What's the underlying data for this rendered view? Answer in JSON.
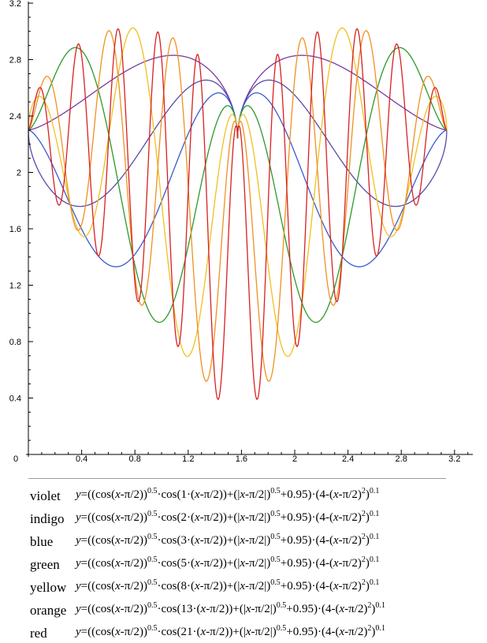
{
  "chart_data": {
    "type": "line",
    "title": "",
    "xlabel": "",
    "ylabel": "",
    "xlim": [
      0,
      3.3
    ],
    "ylim": [
      0,
      3.2
    ],
    "x_ticks": [
      "0",
      "0.4",
      "0.8",
      "1.2",
      "1.6",
      "2",
      "2.4",
      "2.8",
      "3.2"
    ],
    "y_ticks": [
      "0.4",
      "0.8",
      "1.2",
      "1.6",
      "2",
      "2.4",
      "2.8",
      "3.2"
    ],
    "grid": false,
    "legend_position": "bottom",
    "x_domain": [
      0,
      3.14159
    ],
    "series": [
      {
        "name": "violet",
        "k": 1,
        "color": "#7a3aa0",
        "equation": "y=((cos(x-π/2))^0.5·cos(1·(x-π/2))+(|x-π/2|)^0.5+0.95)·(4-(x-π/2)^2)^0.1"
      },
      {
        "name": "indigo",
        "k": 2,
        "color": "#5a4aa8",
        "equation": "y=((cos(x-π/2))^0.5·cos(2·(x-π/2))+(|x-π/2|)^0.5+0.95)·(4-(x-π/2)^2)^0.1"
      },
      {
        "name": "blue",
        "k": 3,
        "color": "#3a5ad0",
        "equation": "y=((cos(x-π/2))^0.5·cos(3·(x-π/2))+(|x-π/2|)^0.5+0.95)·(4-(x-π/2)^2)^0.1"
      },
      {
        "name": "green",
        "k": 5,
        "color": "#2a9a2a",
        "equation": "y=((cos(x-π/2))^0.5·cos(5·(x-π/2))+(|x-π/2|)^0.5+0.95)·(4-(x-π/2)^2)^0.1"
      },
      {
        "name": "yellow",
        "k": 8,
        "color": "#f0c020",
        "equation": "y=((cos(x-π/2))^0.5·cos(8·(x-π/2))+(|x-π/2|)^0.5+0.95)·(4-(x-π/2)^2)^0.1"
      },
      {
        "name": "orange",
        "k": 13,
        "color": "#f09020",
        "equation": "y=((cos(x-π/2))^0.5·cos(13·(x-π/2))+(|x-π/2|)^0.5+0.95)·(4-(x-π/2)^2)^0.1"
      },
      {
        "name": "red",
        "k": 21,
        "color": "#d82020",
        "equation": "y=((cos(x-π/2))^0.5·cos(21·(x-π/2))+(|x-π/2|)^0.5+0.95)·(4-(x-π/2)^2)^0.1"
      }
    ]
  }
}
